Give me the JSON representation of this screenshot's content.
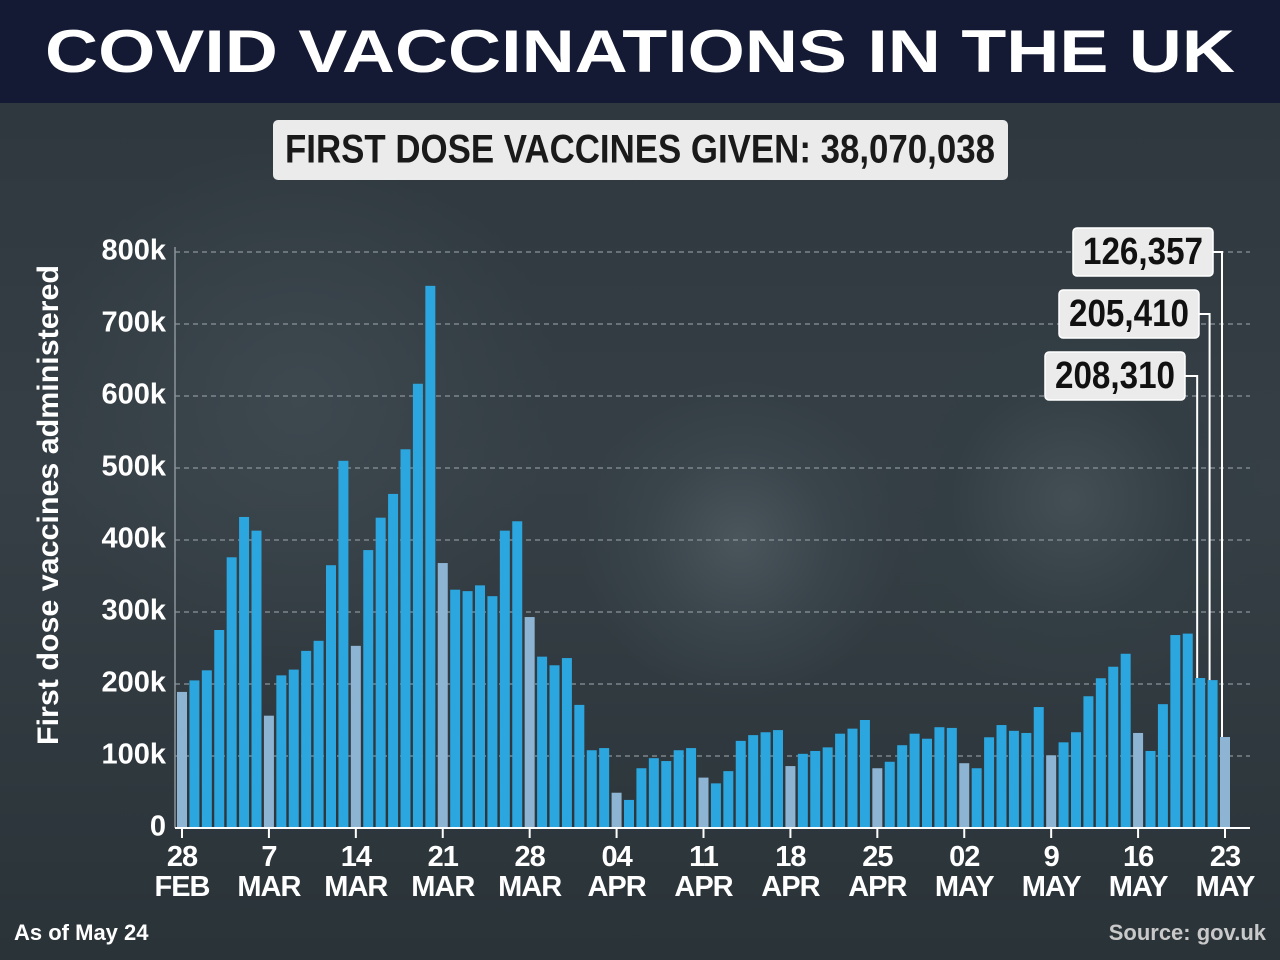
{
  "chart_data": {
    "type": "bar",
    "title": "COVID VACCINATIONS IN THE UK",
    "subtitle": "FIRST DOSE VACCINES GIVEN: 38,070,038",
    "y_label": "First dose vaccines administered",
    "note": "As of May 24",
    "source": "Source: gov.uk",
    "categories": [
      "28\nFEB",
      null,
      null,
      null,
      null,
      null,
      null,
      "7\nMAR",
      null,
      null,
      null,
      null,
      null,
      null,
      "14\nMAR",
      null,
      null,
      null,
      null,
      null,
      null,
      "21\nMAR",
      null,
      null,
      null,
      null,
      null,
      null,
      "28\nMAR",
      null,
      null,
      null,
      null,
      null,
      null,
      "04\nAPR",
      null,
      null,
      null,
      null,
      null,
      null,
      "11\nAPR",
      null,
      null,
      null,
      null,
      null,
      null,
      "18\nAPR",
      null,
      null,
      null,
      null,
      null,
      null,
      "25\nAPR",
      null,
      null,
      null,
      null,
      null,
      null,
      "02\nMAY",
      null,
      null,
      null,
      null,
      null,
      null,
      "9\nMAY",
      null,
      null,
      null,
      null,
      null,
      null,
      "16\nMAY",
      null,
      null,
      null,
      null,
      null,
      null,
      "23\nMAY"
    ],
    "values": [
      189000,
      205000,
      219000,
      275000,
      376000,
      432000,
      413000,
      156000,
      212000,
      220000,
      246000,
      260000,
      365000,
      510000,
      253000,
      386000,
      431000,
      464000,
      526000,
      617000,
      753000,
      368000,
      331000,
      329000,
      337000,
      322000,
      413000,
      426000,
      293000,
      238000,
      226000,
      236000,
      171000,
      108000,
      111000,
      49000,
      39000,
      83000,
      97000,
      93000,
      108000,
      111000,
      70000,
      62000,
      79000,
      121000,
      129000,
      133000,
      136000,
      86000,
      103000,
      107000,
      112000,
      131000,
      138000,
      150000,
      83000,
      92000,
      115000,
      131000,
      124000,
      140000,
      139000,
      90000,
      83000,
      126000,
      143000,
      135000,
      132000,
      168000,
      101000,
      119000,
      133000,
      183000,
      208000,
      224000,
      242000,
      132000,
      107000,
      172000,
      268000,
      270000,
      208310,
      205410,
      126357
    ],
    "value_labels": [
      null,
      null,
      null,
      null,
      null,
      null,
      null,
      null,
      null,
      null,
      null,
      null,
      null,
      null,
      null,
      null,
      null,
      null,
      null,
      null,
      null,
      null,
      null,
      null,
      null,
      null,
      null,
      null,
      null,
      null,
      null,
      null,
      null,
      null,
      null,
      null,
      null,
      null,
      null,
      null,
      null,
      null,
      null,
      null,
      null,
      null,
      null,
      null,
      null,
      null,
      null,
      null,
      null,
      null,
      null,
      null,
      null,
      null,
      null,
      null,
      null,
      null,
      null,
      null,
      null,
      null,
      null,
      null,
      null,
      null,
      null,
      null,
      null,
      null,
      null,
      null,
      null,
      null,
      null,
      null,
      null,
      null,
      "208,310",
      "205,410",
      "126,357"
    ],
    "colors": [
      "#8db4d3",
      "#2ba6de",
      "#2ba6de",
      "#2ba6de",
      "#2ba6de",
      "#2ba6de",
      "#2ba6de",
      "#8db4d3",
      "#2ba6de",
      "#2ba6de",
      "#2ba6de",
      "#2ba6de",
      "#2ba6de",
      "#2ba6de",
      "#8db4d3",
      "#2ba6de",
      "#2ba6de",
      "#2ba6de",
      "#2ba6de",
      "#2ba6de",
      "#2ba6de",
      "#8db4d3",
      "#2ba6de",
      "#2ba6de",
      "#2ba6de",
      "#2ba6de",
      "#2ba6de",
      "#2ba6de",
      "#8db4d3",
      "#2ba6de",
      "#2ba6de",
      "#2ba6de",
      "#2ba6de",
      "#2ba6de",
      "#2ba6de",
      "#8db4d3",
      "#2ba6de",
      "#2ba6de",
      "#2ba6de",
      "#2ba6de",
      "#2ba6de",
      "#2ba6de",
      "#8db4d3",
      "#2ba6de",
      "#2ba6de",
      "#2ba6de",
      "#2ba6de",
      "#2ba6de",
      "#2ba6de",
      "#8db4d3",
      "#2ba6de",
      "#2ba6de",
      "#2ba6de",
      "#2ba6de",
      "#2ba6de",
      "#2ba6de",
      "#8db4d3",
      "#2ba6de",
      "#2ba6de",
      "#2ba6de",
      "#2ba6de",
      "#2ba6de",
      "#2ba6de",
      "#8db4d3",
      "#2ba6de",
      "#2ba6de",
      "#2ba6de",
      "#2ba6de",
      "#2ba6de",
      "#2ba6de",
      "#8db4d3",
      "#2ba6de",
      "#2ba6de",
      "#2ba6de",
      "#2ba6de",
      "#2ba6de",
      "#2ba6de",
      "#8db4d3",
      "#2ba6de",
      "#2ba6de",
      "#2ba6de",
      "#2ba6de",
      "#2ba6de",
      "#2ba6de",
      "#8db4d3"
    ],
    "ylim": [
      0,
      800000
    ],
    "yticks": [
      0,
      {
        "value": 100000,
        "label": "100k"
      },
      {
        "value": 200000,
        "label": "200k"
      },
      {
        "value": 300000,
        "label": "300k"
      },
      {
        "value": 400000,
        "label": "400k"
      },
      {
        "value": 500000,
        "label": "500k"
      },
      {
        "value": 600000,
        "label": "600k"
      },
      {
        "value": 700000,
        "label": "700k"
      },
      {
        "value": 800000,
        "label": "800k"
      }
    ],
    "grid": true
  }
}
